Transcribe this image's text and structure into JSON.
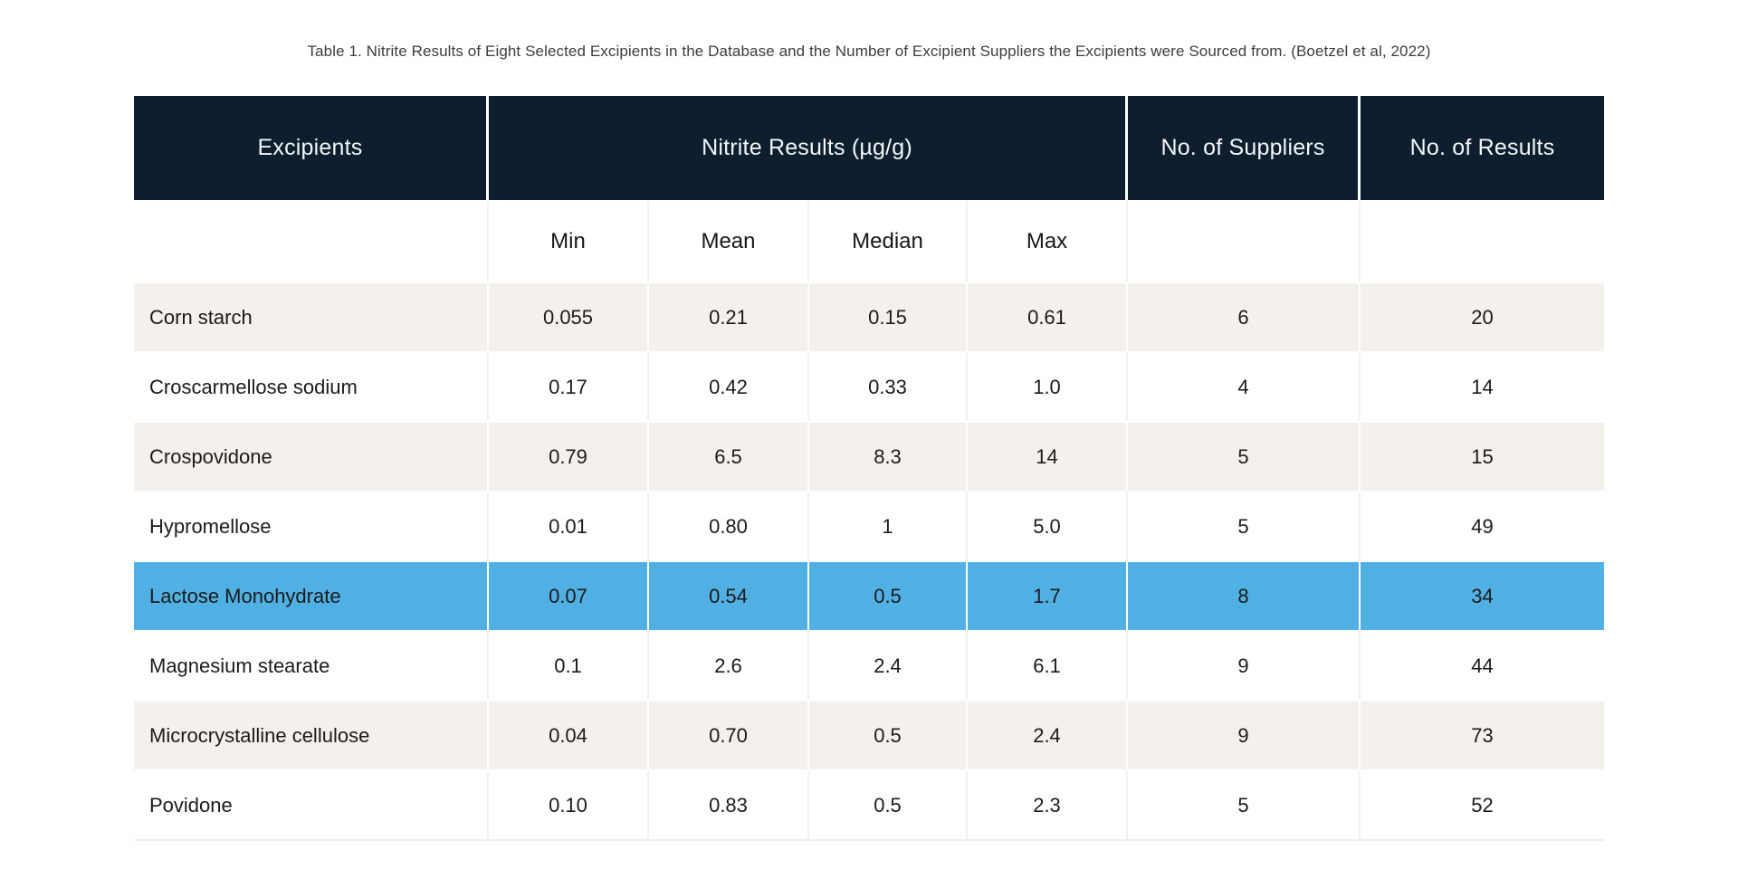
{
  "caption": "Table 1. Nitrite Results of Eight Selected Excipients in the Database and the Number of Excipient Suppliers the Excipients were Sourced from. (Boetzel et al, 2022)",
  "colors": {
    "header_bg": "#0d1f2f",
    "header_text": "#f3f6f8",
    "stripe_row_bg": "#f4f0eb",
    "highlight_row_bg": "#51b0e3",
    "body_text": "#1b1b1b"
  },
  "table": {
    "header": {
      "excipients": "Excipients",
      "nitrite_group": "Nitrite Results (µg/g)",
      "suppliers": "No. of Suppliers",
      "results": "No. of Results"
    },
    "sub_header": {
      "min": "Min",
      "mean": "Mean",
      "median": "Median",
      "max": "Max"
    },
    "rows": [
      {
        "excipient": "Corn starch",
        "min": "0.055",
        "mean": "0.21",
        "median": "0.15",
        "max": "0.61",
        "suppliers": "6",
        "results": "20"
      },
      {
        "excipient": "Croscarmellose sodium",
        "min": "0.17",
        "mean": "0.42",
        "median": "0.33",
        "max": "1.0",
        "suppliers": "4",
        "results": "14"
      },
      {
        "excipient": "Crospovidone",
        "min": "0.79",
        "mean": "6.5",
        "median": "8.3",
        "max": "14",
        "suppliers": "5",
        "results": "15"
      },
      {
        "excipient": "Hypromellose",
        "min": "0.01",
        "mean": "0.80",
        "median": "1",
        "max": "5.0",
        "suppliers": "5",
        "results": "49"
      },
      {
        "excipient": "Lactose Monohydrate",
        "min": "0.07",
        "mean": "0.54",
        "median": "0.5",
        "max": "1.7",
        "suppliers": "8",
        "results": "34"
      },
      {
        "excipient": "Magnesium stearate",
        "min": "0.1",
        "mean": "2.6",
        "median": "2.4",
        "max": "6.1",
        "suppliers": "9",
        "results": "44"
      },
      {
        "excipient": "Microcrystalline cellulose",
        "min": "0.04",
        "mean": "0.70",
        "median": "0.5",
        "max": "2.4",
        "suppliers": "9",
        "results": "73"
      },
      {
        "excipient": "Povidone",
        "min": "0.10",
        "mean": "0.83",
        "median": "0.5",
        "max": "2.3",
        "suppliers": "5",
        "results": "52"
      }
    ]
  },
  "chart_data": {
    "type": "table",
    "title": "Table 1. Nitrite Results of Eight Selected Excipients in the Database and the Number of Excipient Suppliers the Excipients were Sourced from. (Boetzel et al, 2022)",
    "columns": [
      "Excipients",
      "Min",
      "Mean",
      "Median",
      "Max",
      "No. of Suppliers",
      "No. of Results"
    ],
    "column_groups": [
      {
        "label": "Nitrite Results (µg/g)",
        "spans": [
          "Min",
          "Mean",
          "Median",
          "Max"
        ]
      }
    ],
    "rows": [
      [
        "Corn starch",
        0.055,
        0.21,
        0.15,
        0.61,
        6,
        20
      ],
      [
        "Croscarmellose sodium",
        0.17,
        0.42,
        0.33,
        1.0,
        4,
        14
      ],
      [
        "Crospovidone",
        0.79,
        6.5,
        8.3,
        14,
        5,
        15
      ],
      [
        "Hypromellose",
        0.01,
        0.8,
        1,
        5.0,
        5,
        49
      ],
      [
        "Lactose Monohydrate",
        0.07,
        0.54,
        0.5,
        1.7,
        8,
        34
      ],
      [
        "Magnesium stearate",
        0.1,
        2.6,
        2.4,
        6.1,
        9,
        44
      ],
      [
        "Microcrystalline cellulose",
        0.04,
        0.7,
        0.5,
        2.4,
        9,
        73
      ],
      [
        "Povidone",
        0.1,
        0.83,
        0.5,
        2.3,
        5,
        52
      ]
    ],
    "highlighted_row": "Lactose Monohydrate",
    "layout": {
      "row_striping": true,
      "highlight_color": "#51b0e3",
      "header_color": "#0d1f2f"
    }
  }
}
